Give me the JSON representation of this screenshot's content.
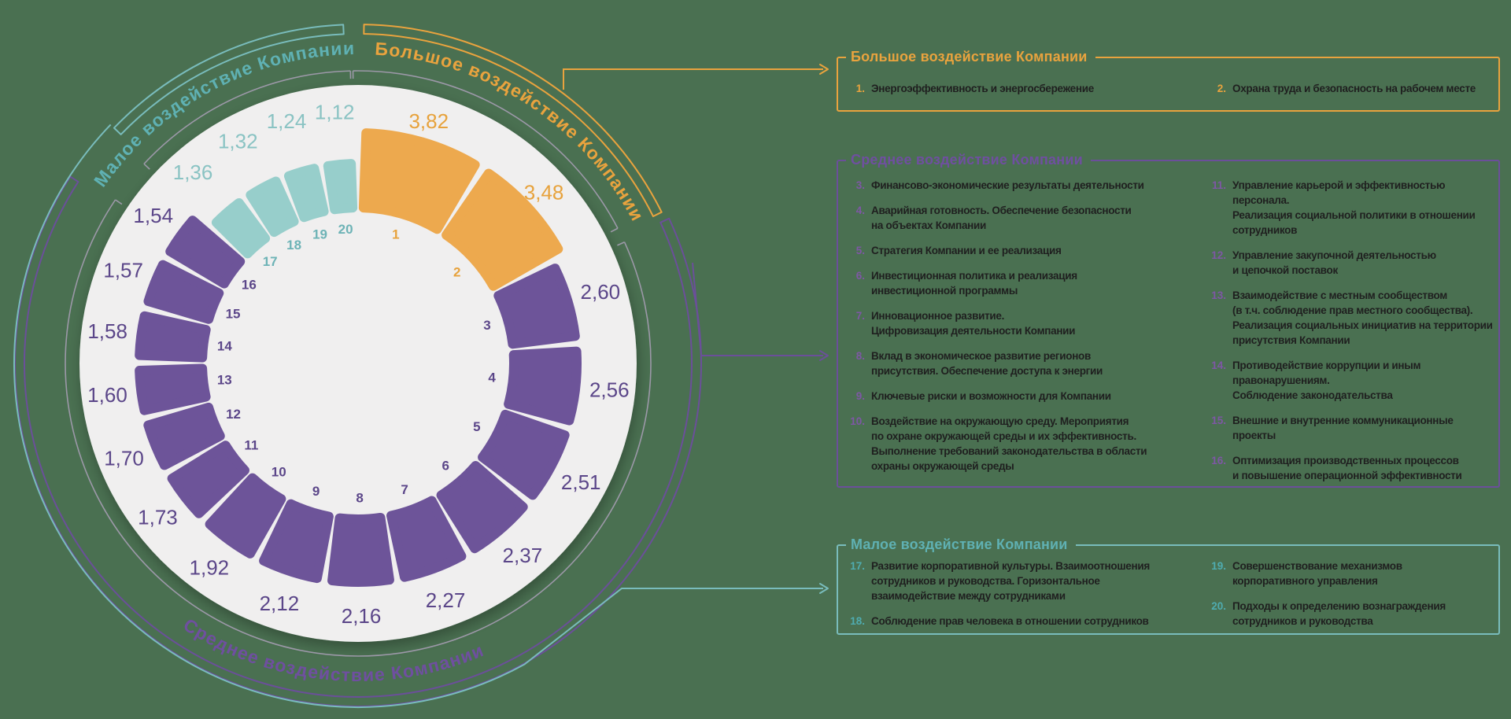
{
  "background_color": "#4a7051",
  "chart_data": {
    "type": "radial-bar",
    "title": "",
    "units": "",
    "legend_position": "right",
    "grid": false,
    "groups": {
      "high": {
        "arc_label": "Большое воздействие Компании",
        "seg_color": "#eda94e",
        "num_color": "#e7a23c",
        "val_color": "#e7a23c",
        "label_color": "#e9a33e",
        "line_color": "#e9a33e"
      },
      "mid": {
        "arc_label": "Среднее воздействие Компании",
        "seg_color": "#6d5499",
        "num_color": "#5b4689",
        "val_color": "#5b4689",
        "label_color": "#6f4fa0",
        "line_color": "#6b4f9a"
      },
      "low": {
        "arc_label": "Малое воздействие Компании",
        "seg_color": "#97cecb",
        "num_color": "#6db3b6",
        "val_color": "#8ac3c3",
        "label_color": "#5fb1b3",
        "line_color": "#79bcbc"
      }
    },
    "colors": {
      "disc": "#f0efef",
      "gray_arc": "#9c98a8",
      "background": "#4a7051",
      "item_text": "#1f1f1f"
    },
    "segments": [
      {
        "n": "1",
        "value": 3.82,
        "value_label": "3,82",
        "group": "high"
      },
      {
        "n": "2",
        "value": 3.48,
        "value_label": "3,48",
        "group": "high"
      },
      {
        "n": "3",
        "value": 2.6,
        "value_label": "2,60",
        "group": "mid"
      },
      {
        "n": "4",
        "value": 2.56,
        "value_label": "2,56",
        "group": "mid"
      },
      {
        "n": "5",
        "value": 2.51,
        "value_label": "2,51",
        "group": "mid"
      },
      {
        "n": "6",
        "value": 2.37,
        "value_label": "2,37",
        "group": "mid"
      },
      {
        "n": "7",
        "value": 2.27,
        "value_label": "2,27",
        "group": "mid"
      },
      {
        "n": "8",
        "value": 2.16,
        "value_label": "2,16",
        "group": "mid"
      },
      {
        "n": "9",
        "value": 2.12,
        "value_label": "2,12",
        "group": "mid"
      },
      {
        "n": "10",
        "value": 1.92,
        "value_label": "1,92",
        "group": "mid"
      },
      {
        "n": "11",
        "value": 1.73,
        "value_label": "1,73",
        "group": "mid"
      },
      {
        "n": "12",
        "value": 1.7,
        "value_label": "1,70",
        "group": "mid"
      },
      {
        "n": "13",
        "value": 1.6,
        "value_label": "1,60",
        "group": "mid"
      },
      {
        "n": "14",
        "value": 1.58,
        "value_label": "1,58",
        "group": "mid"
      },
      {
        "n": "15",
        "value": 1.57,
        "value_label": "1,57",
        "group": "mid"
      },
      {
        "n": "16",
        "value": 1.54,
        "value_label": "1,54",
        "group": "mid"
      },
      {
        "n": "17",
        "value": 1.36,
        "value_label": "1,36",
        "group": "low"
      },
      {
        "n": "18",
        "value": 1.32,
        "value_label": "1,32",
        "group": "low"
      },
      {
        "n": "19",
        "value": 1.24,
        "value_label": "1,24",
        "group": "low"
      },
      {
        "n": "20",
        "value": 1.12,
        "value_label": "1,12",
        "group": "low"
      }
    ]
  },
  "boxes": [
    {
      "id": "high",
      "title": "Большое воздействие Компании",
      "col1": [
        {
          "n": "1.",
          "text": "Энергоэффективность и энергосбережение"
        }
      ],
      "col2": [
        {
          "n": "2.",
          "text": "Охрана труда и безопасность на рабочем месте"
        }
      ]
    },
    {
      "id": "mid",
      "title": "Среднее воздействие Компании",
      "col1": [
        {
          "n": "3.",
          "text": "Финансово-экономические результаты деятельности"
        },
        {
          "n": "4.",
          "text": "Аварийная готовность. Обеспечение безопасности\nна объектах Компании"
        },
        {
          "n": "5.",
          "text": "Стратегия Компании и ее реализация"
        },
        {
          "n": "6.",
          "text": "Инвестиционная политика и реализация\nинвестиционной программы"
        },
        {
          "n": "7.",
          "text": "Инновационное развитие.\nЦифровизация деятельности Компании"
        },
        {
          "n": "8.",
          "text": "Вклад в экономическое развитие регионов\nприсутствия. Обеспечение доступа к энергии"
        },
        {
          "n": "9.",
          "text": "Ключевые риски и возможности для Компании"
        },
        {
          "n": "10.",
          "text": "Воздействие на окружающую среду. Мероприятия\nпо охране окружающей среды и их эффективность.\nВыполнение требований законодательства в области\nохраны окружающей среды"
        }
      ],
      "col2": [
        {
          "n": "11.",
          "text": "Управление карьерой и эффективностью персонала.\nРеализация социальной политики в отношении\nсотрудников"
        },
        {
          "n": "12.",
          "text": "Управление закупочной деятельностью\nи цепочкой поставок"
        },
        {
          "n": "13.",
          "text": "Взаимодействие с местным сообществом\n(в т.ч. соблюдение прав местного сообщества).\nРеализация социальных инициатив на территории\nприсутствия Компании"
        },
        {
          "n": "14.",
          "text": "Противодействие коррупции и иным правонарушениям.\nСоблюдение законодательства"
        },
        {
          "n": "15.",
          "text": "Внешние и внутренние коммуникационные проекты"
        },
        {
          "n": "16.",
          "text": "Оптимизация производственных процессов\nи повышение операционной эффективности"
        }
      ]
    },
    {
      "id": "low",
      "title": "Малое воздействие Компании",
      "col1": [
        {
          "n": "17.",
          "text": "Развитие корпоративной культуры. Взаимоотношения\nсотрудников и руководства. Горизонтальное\nвзаимодействие между сотрудниками"
        },
        {
          "n": "18.",
          "text": "Соблюдение прав человека в отношении сотрудников"
        }
      ],
      "col2": [
        {
          "n": "19.",
          "text": "Совершенствование механизмов\nкорпоративного управления"
        },
        {
          "n": "20.",
          "text": "Подходы к определению вознаграждения\nсотрудников и руководства"
        }
      ]
    }
  ]
}
